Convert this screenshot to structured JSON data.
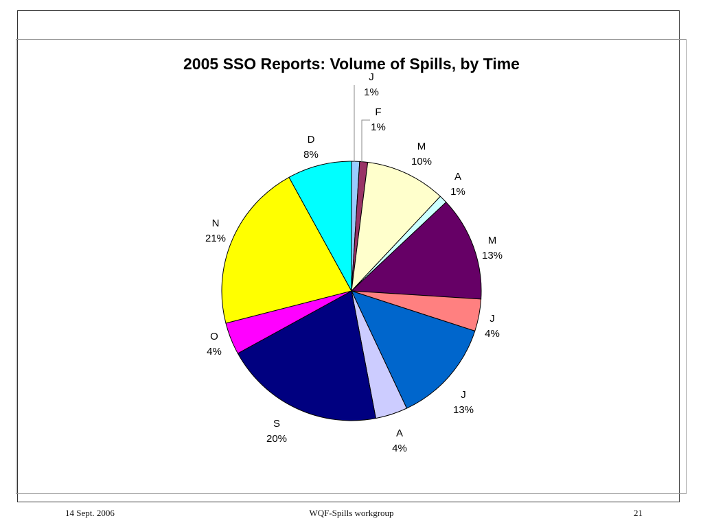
{
  "footer": {
    "date": "14 Sept. 2006",
    "center": "WQF-Spills workgroup",
    "page": "21"
  },
  "chart_data": {
    "type": "pie",
    "title": "2005 SSO Reports: Volume of Spills, by Time",
    "slices": [
      {
        "label": "J",
        "value": 1,
        "pct_label": "1%",
        "color": "#99ccff"
      },
      {
        "label": "F",
        "value": 1,
        "pct_label": "1%",
        "color": "#993366"
      },
      {
        "label": "M",
        "value": 10,
        "pct_label": "10%",
        "color": "#ffffcc"
      },
      {
        "label": "A",
        "value": 1,
        "pct_label": "1%",
        "color": "#ccffff"
      },
      {
        "label": "M",
        "value": 13,
        "pct_label": "13%",
        "color": "#660066"
      },
      {
        "label": "J",
        "value": 4,
        "pct_label": "4%",
        "color": "#ff8080"
      },
      {
        "label": "J",
        "value": 13,
        "pct_label": "13%",
        "color": "#0066cc"
      },
      {
        "label": "A",
        "value": 4,
        "pct_label": "4%",
        "color": "#ccccff"
      },
      {
        "label": "S",
        "value": 20,
        "pct_label": "20%",
        "color": "#000080"
      },
      {
        "label": "O",
        "value": 4,
        "pct_label": "4%",
        "color": "#ff00ff"
      },
      {
        "label": "N",
        "value": 21,
        "pct_label": "21%",
        "color": "#ffff00"
      },
      {
        "label": "D",
        "value": 8,
        "pct_label": "8%",
        "color": "#00ffff"
      }
    ],
    "legend": "none"
  }
}
